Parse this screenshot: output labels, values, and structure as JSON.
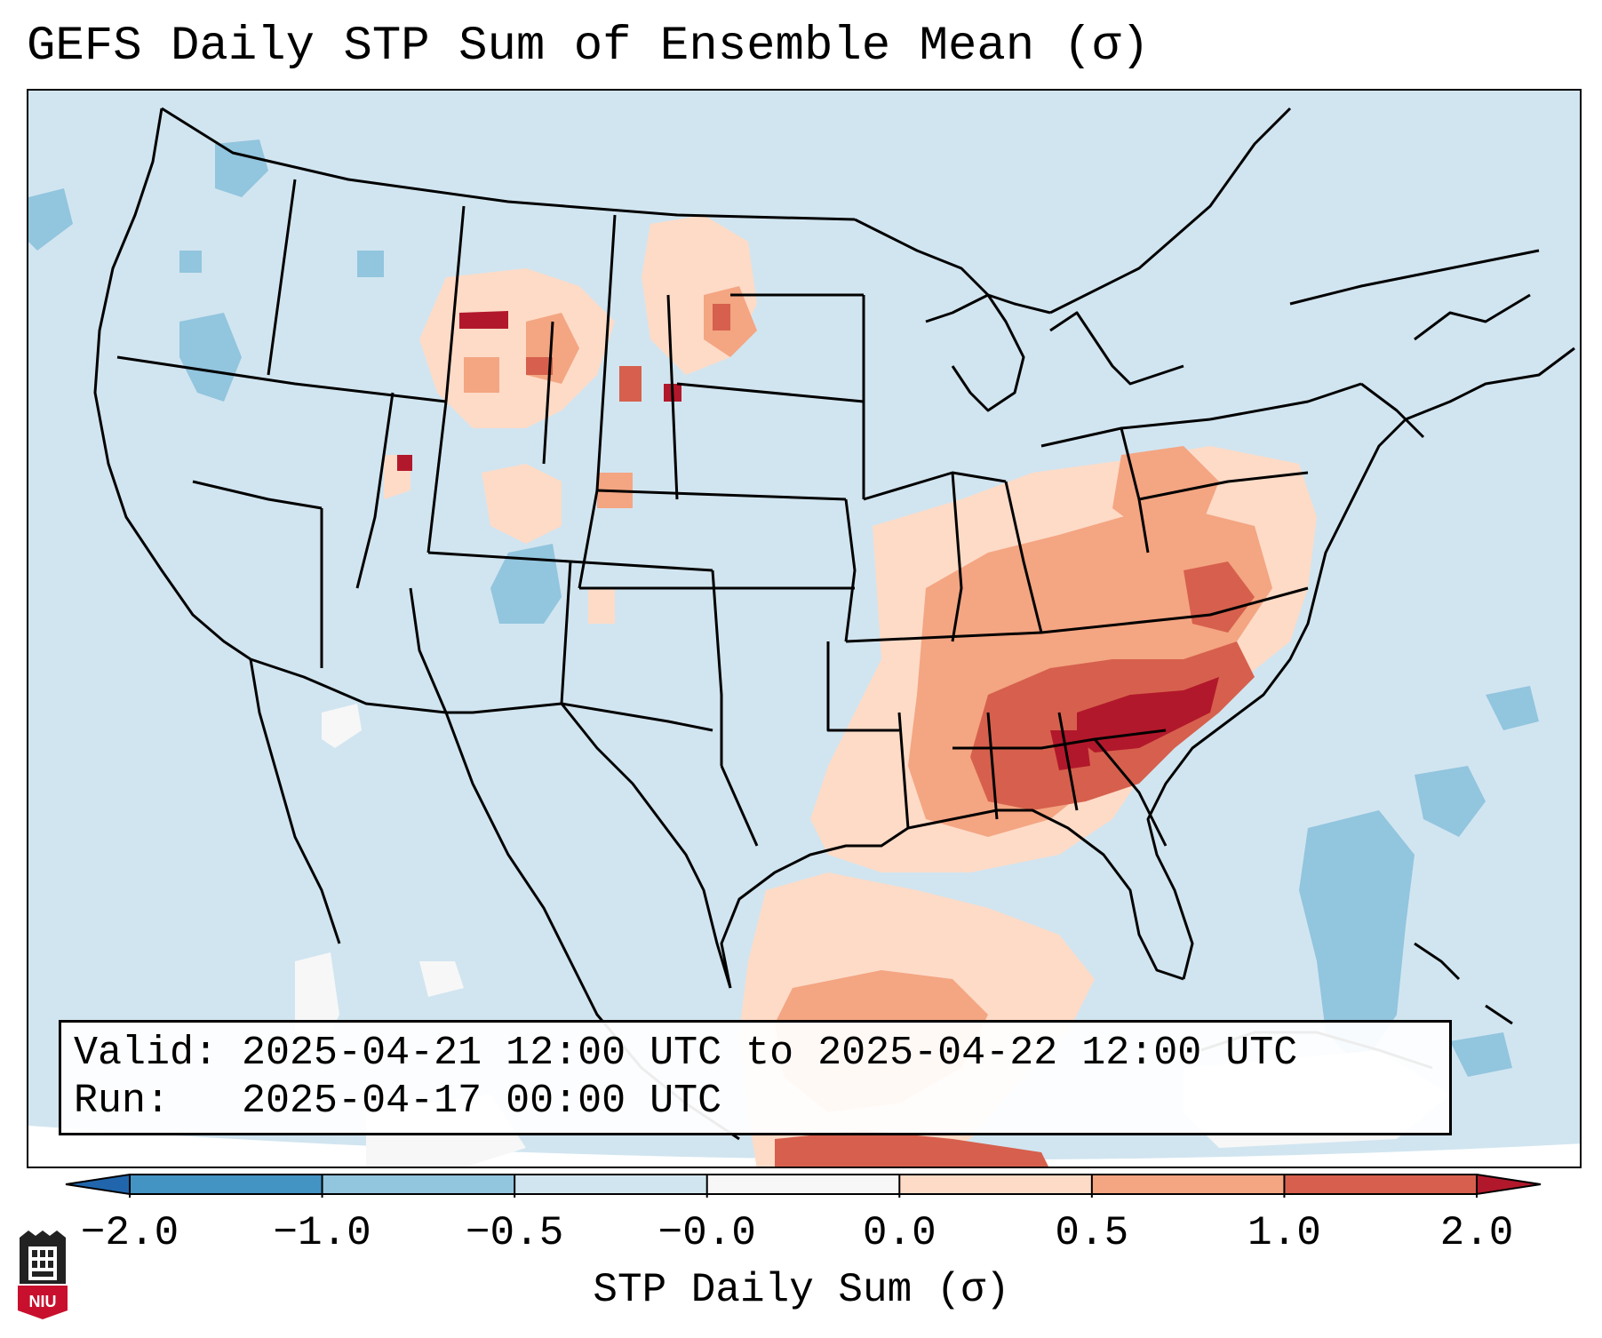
{
  "title": "GEFS Daily STP Sum of Ensemble Mean (σ)",
  "info": {
    "valid_label": "Valid:",
    "valid_value": "2025-04-21 12:00 UTC to 2025-04-22 12:00 UTC",
    "run_label": "Run:",
    "run_value": "2025-04-17 00:00 UTC"
  },
  "colorbar": {
    "label": "STP Daily Sum (σ)",
    "ticks": [
      "−2.0",
      "−1.0",
      "−0.5",
      "−0.0",
      "0.0",
      "0.5",
      "1.0",
      "2.0"
    ],
    "colors": [
      "#4393c3",
      "#92c5de",
      "#d1e5f0",
      "#f7f7f7",
      "#fddbc7",
      "#f4a582",
      "#d6604d"
    ],
    "extend_low_color": "#2166ac",
    "extend_high_color": "#b2182b"
  },
  "map": {
    "background_color": "#d1e5f0",
    "line_color": "#000000",
    "region": "CONUS",
    "highlighted_region": "Southeast United States / Tennessee Valley"
  },
  "logo": {
    "text": "NIU",
    "icon": "niu-logo-icon"
  }
}
